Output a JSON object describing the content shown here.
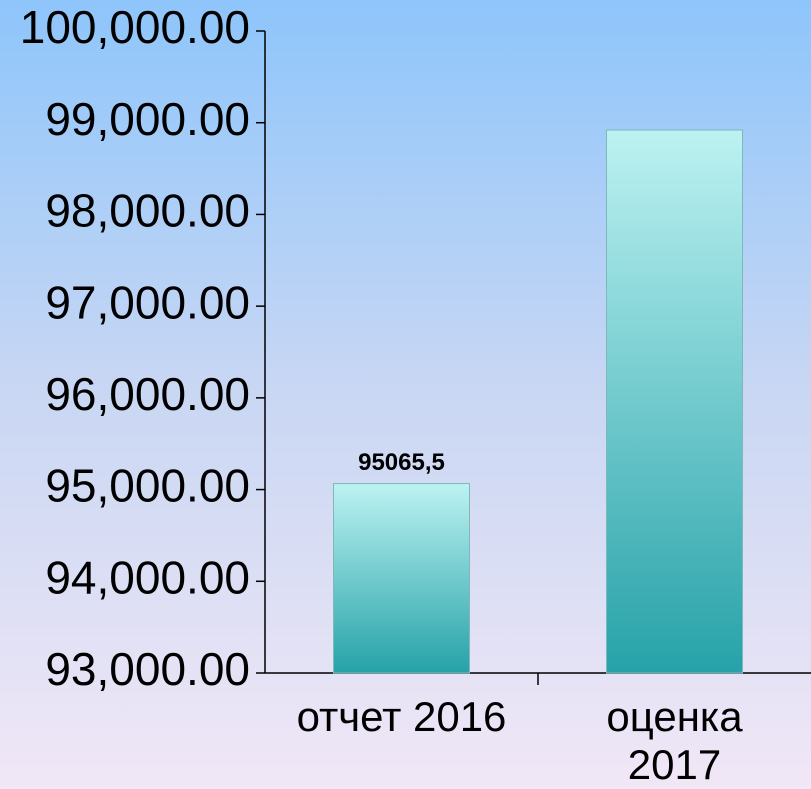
{
  "chart_data": {
    "type": "bar",
    "categories": [
      "отчет 2016",
      "оценка 2017"
    ],
    "values": [
      95065.5,
      98920
    ],
    "value_labels": [
      "95065,5",
      null
    ],
    "ylim": [
      93000,
      100000
    ],
    "yticks": [
      {
        "value": 93000,
        "label": "93,000.00"
      },
      {
        "value": 94000,
        "label": "94,000.00"
      },
      {
        "value": 95000,
        "label": "95,000.00"
      },
      {
        "value": 96000,
        "label": "96,000.00"
      },
      {
        "value": 97000,
        "label": "97,000.00"
      },
      {
        "value": 98000,
        "label": "98,000.00"
      },
      {
        "value": 99000,
        "label": "99,000.00"
      },
      {
        "value": 100000,
        "label": "100,000.00"
      }
    ]
  }
}
